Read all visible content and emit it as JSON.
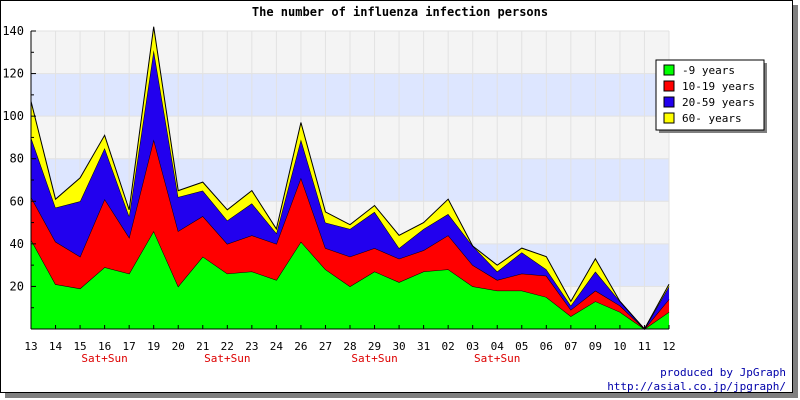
{
  "chart_data": {
    "type": "area",
    "stacked": true,
    "title": "The number of influenza infection persons",
    "categories": [
      "13",
      "14",
      "15",
      "16",
      "17",
      "19",
      "20",
      "21",
      "22",
      "23",
      "24",
      "26",
      "27",
      "28",
      "29",
      "30",
      "31",
      "02",
      "03",
      "04",
      "05",
      "06",
      "07",
      "09",
      "10",
      "11",
      "12"
    ],
    "category_sublabels": [
      "",
      "",
      "",
      "Sat+Sun",
      "",
      "",
      "",
      "",
      "Sat+Sun",
      "",
      "",
      "",
      "",
      "",
      "Sat+Sun",
      "",
      "",
      "",
      "",
      "Sat+Sun",
      "",
      "",
      "",
      "",
      "",
      "",
      ""
    ],
    "ylim": [
      0,
      140
    ],
    "yticks": [
      20,
      40,
      60,
      80,
      100,
      120,
      140
    ],
    "grid": true,
    "legend_position": "top-right",
    "series": [
      {
        "name": "-9 years",
        "color": "#00ff00",
        "values": [
          42,
          21,
          19,
          29,
          26,
          46,
          20,
          34,
          26,
          27,
          23,
          41,
          28,
          20,
          27,
          22,
          27,
          28,
          20,
          18,
          18,
          15,
          6,
          13,
          8,
          0,
          8
        ]
      },
      {
        "name": "10-19 years",
        "color": "#ff0000",
        "values": [
          20,
          20,
          15,
          32,
          17,
          43,
          26,
          19,
          14,
          17,
          17,
          30,
          10,
          14,
          11,
          11,
          10,
          16,
          10,
          5,
          8,
          10,
          3,
          5,
          3,
          0,
          6
        ]
      },
      {
        "name": "20-59 years",
        "color": "#2200ee",
        "values": [
          28,
          16,
          26,
          24,
          10,
          42,
          16,
          12,
          11,
          15,
          5,
          18,
          12,
          13,
          17,
          5,
          10,
          10,
          9,
          4,
          10,
          3,
          2,
          9,
          2,
          0,
          6
        ]
      },
      {
        "name": "60- years",
        "color": "#ffff00",
        "values": [
          17,
          4,
          11,
          6,
          3,
          11,
          3,
          4,
          5,
          6,
          2,
          8,
          5,
          2,
          3,
          6,
          3,
          7,
          0,
          3,
          2,
          6,
          2,
          6,
          0,
          0,
          1
        ]
      }
    ]
  },
  "credits": {
    "line1": "produced by JpGraph",
    "line2": "http://asial.co.jp/jpgraph/"
  }
}
